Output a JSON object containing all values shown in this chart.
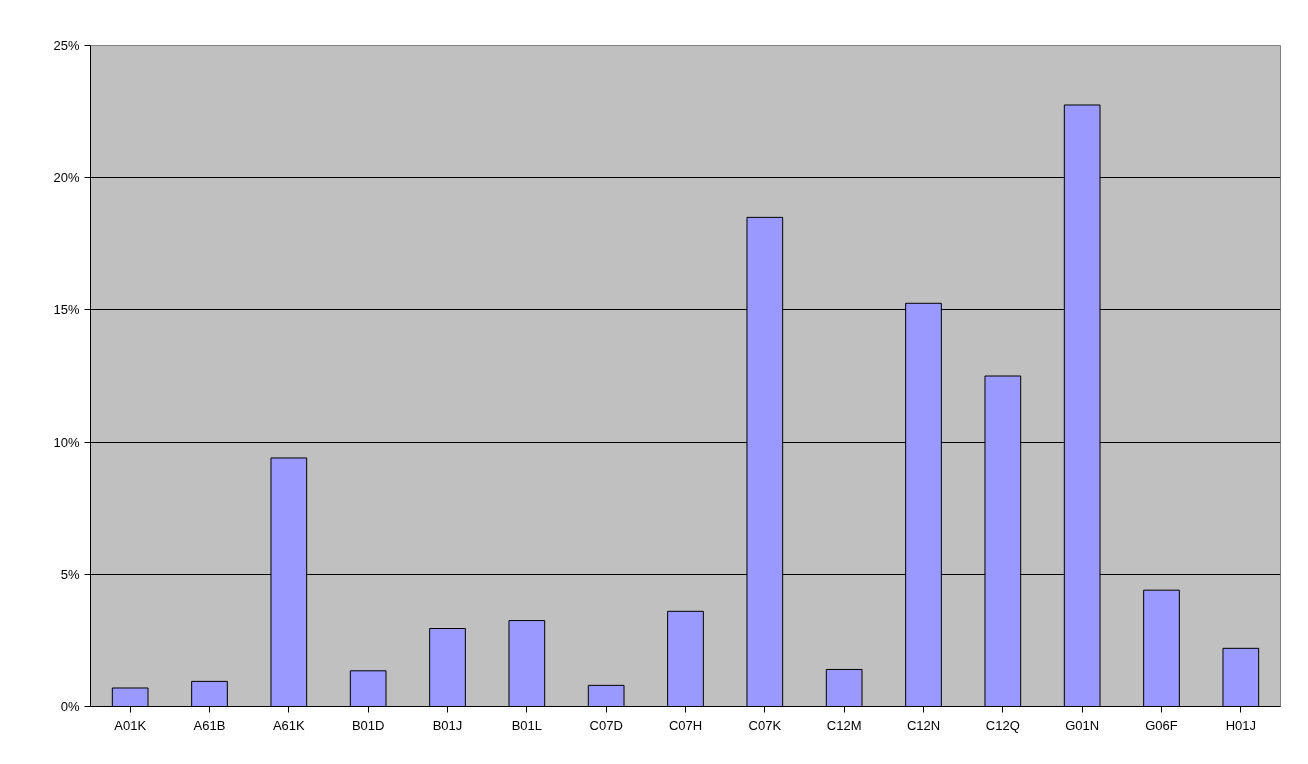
{
  "chart_data": {
    "type": "bar",
    "categories": [
      "A01K",
      "A61B",
      "A61K",
      "B01D",
      "B01J",
      "B01L",
      "C07D",
      "C07H",
      "C07K",
      "C12M",
      "C12N",
      "C12Q",
      "G01N",
      "G06F",
      "H01J"
    ],
    "values": [
      0.7,
      0.95,
      9.4,
      1.35,
      2.95,
      3.25,
      0.8,
      3.6,
      18.5,
      1.4,
      15.25,
      12.5,
      22.75,
      4.4,
      2.2
    ],
    "color": "#9999ff",
    "ylim": [
      0,
      25
    ],
    "yticks": [
      {
        "value": 0,
        "label": "0%"
      },
      {
        "value": 5,
        "label": "5%"
      },
      {
        "value": 10,
        "label": "10%"
      },
      {
        "value": 15,
        "label": "15%"
      },
      {
        "value": 20,
        "label": "20%"
      },
      {
        "value": 25,
        "label": "25%"
      }
    ],
    "grid": "y"
  }
}
